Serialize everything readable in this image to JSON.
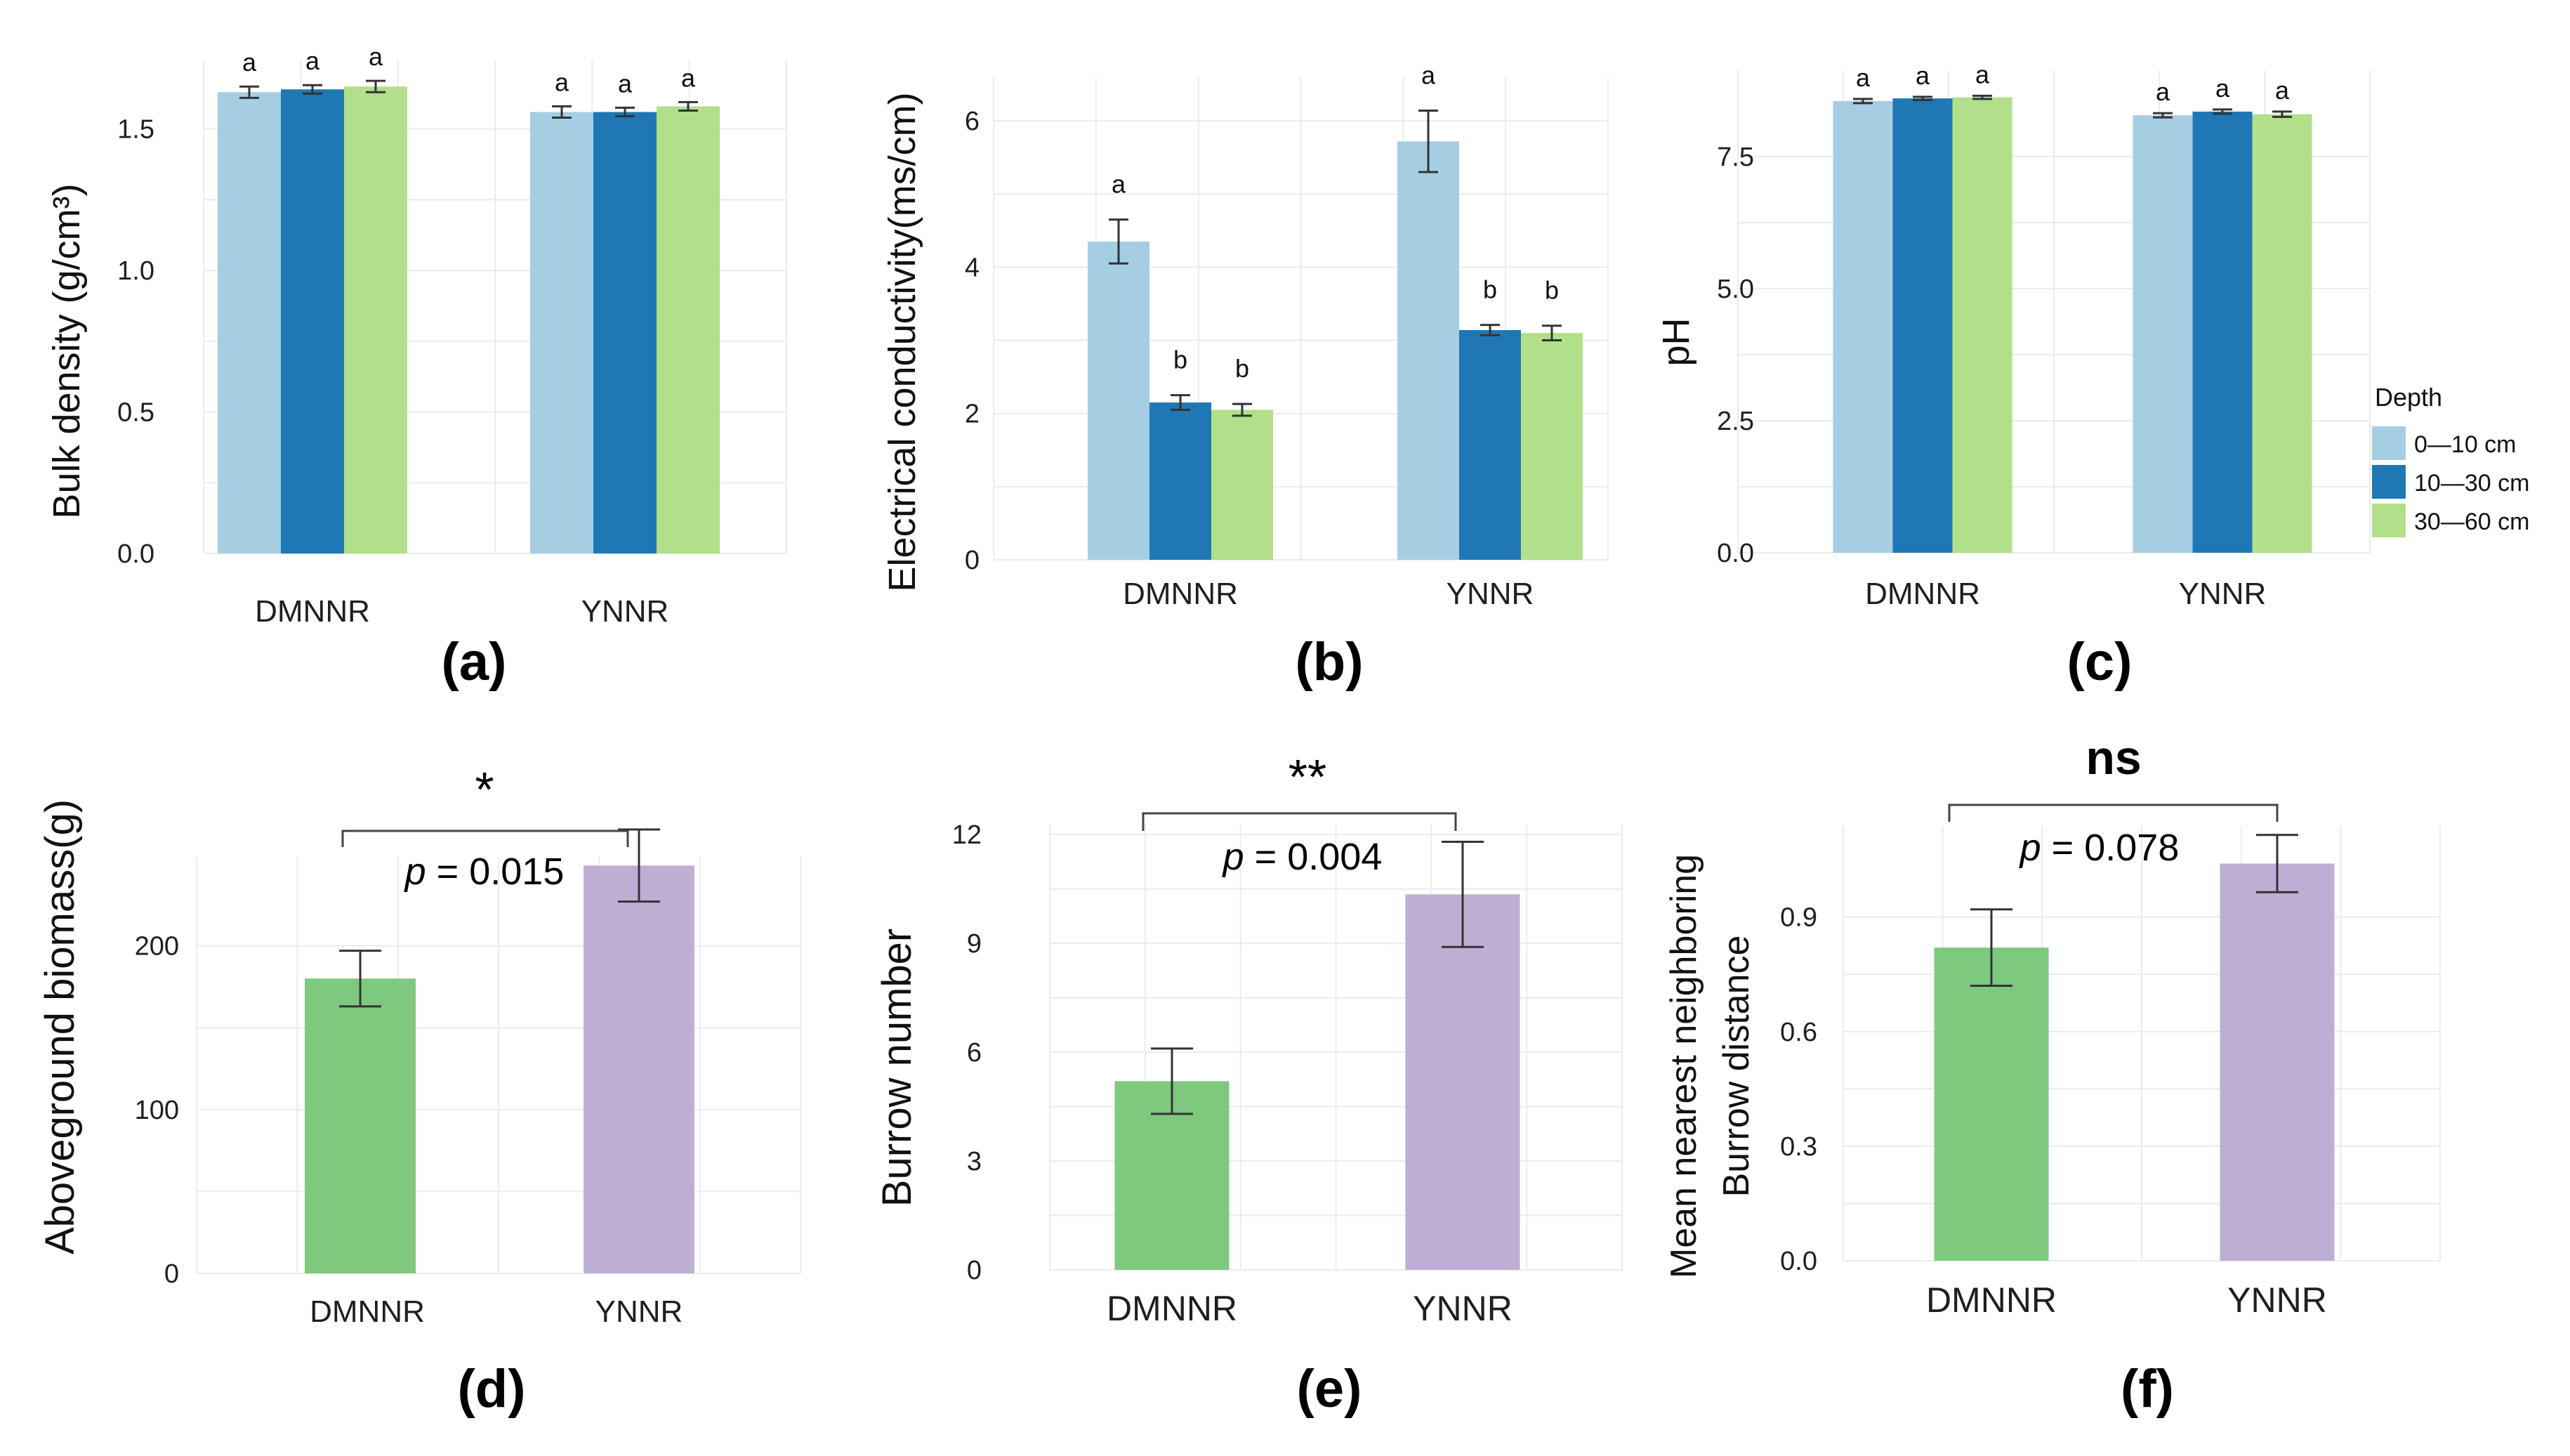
{
  "colors": {
    "depth_0_10": "#a6cee3",
    "depth_10_30": "#1f78b4",
    "depth_30_60": "#b2df8a",
    "dmnnr": "#7fc97f",
    "ynnr": "#beaed4"
  },
  "legend": {
    "title": "Depth",
    "items": [
      "0—10 cm",
      "10—30 cm",
      "30—60 cm"
    ]
  },
  "chart_data": [
    {
      "panel": "(a)",
      "type": "bar",
      "ylabel": "Bulk density (g/cm³)",
      "ylim": [
        0,
        1.72
      ],
      "yticks": [
        "0.0",
        "0.5",
        "1.0",
        "1.5"
      ],
      "categories": [
        "DMNNR",
        "YNNR"
      ],
      "series": [
        {
          "name": "0—10 cm",
          "values": [
            1.63,
            1.56
          ],
          "errors": [
            0.02,
            0.02
          ],
          "letters": [
            "a",
            "a"
          ]
        },
        {
          "name": "10—30 cm",
          "values": [
            1.64,
            1.56
          ],
          "errors": [
            0.015,
            0.015
          ],
          "letters": [
            "a",
            "a"
          ]
        },
        {
          "name": "30—60 cm",
          "values": [
            1.65,
            1.58
          ],
          "errors": [
            0.02,
            0.015
          ],
          "letters": [
            "a",
            "a"
          ]
        }
      ]
    },
    {
      "panel": "(b)",
      "type": "bar",
      "ylabel": "Electrical conductivity(ms/cm)",
      "ylim": [
        0,
        6.5
      ],
      "yticks": [
        "0",
        "2",
        "4",
        "6"
      ],
      "categories": [
        "DMNNR",
        "YNNR"
      ],
      "series": [
        {
          "name": "0—10 cm",
          "values": [
            4.35,
            5.72
          ],
          "errors": [
            0.3,
            0.42
          ],
          "letters": [
            "a",
            "a"
          ]
        },
        {
          "name": "10—30 cm",
          "values": [
            2.15,
            3.14
          ],
          "errors": [
            0.1,
            0.07
          ],
          "letters": [
            "b",
            "b"
          ]
        },
        {
          "name": "30—60 cm",
          "values": [
            2.05,
            3.1
          ],
          "errors": [
            0.08,
            0.1
          ],
          "letters": [
            "b",
            "b"
          ]
        }
      ]
    },
    {
      "panel": "(c)",
      "type": "bar",
      "ylabel": "pH",
      "ylim": [
        0,
        9.0
      ],
      "yticks": [
        "0.0",
        "2.5",
        "5.0",
        "7.5"
      ],
      "categories": [
        "DMNNR",
        "YNNR"
      ],
      "series": [
        {
          "name": "0—10 cm",
          "values": [
            8.55,
            8.28
          ],
          "errors": [
            0.04,
            0.04
          ],
          "letters": [
            "a",
            "a"
          ]
        },
        {
          "name": "10—30 cm",
          "values": [
            8.6,
            8.35
          ],
          "errors": [
            0.03,
            0.04
          ],
          "letters": [
            "a",
            "a"
          ]
        },
        {
          "name": "30—60 cm",
          "values": [
            8.62,
            8.3
          ],
          "errors": [
            0.03,
            0.05
          ],
          "letters": [
            "a",
            "a"
          ]
        }
      ]
    },
    {
      "panel": "(d)",
      "type": "bar",
      "ylabel": "Aboveground biomass(g)",
      "ylim": [
        0,
        250
      ],
      "yticks": [
        "0",
        "100",
        "200"
      ],
      "categories": [
        "DMNNR",
        "YNNR"
      ],
      "values": [
        180,
        249
      ],
      "errors": [
        17,
        22
      ],
      "significance": "*",
      "p_label": "p",
      "p_text": " = 0.015"
    },
    {
      "panel": "(e)",
      "type": "bar",
      "ylabel": "Burrow number",
      "ylim": [
        0,
        12.1
      ],
      "yticks": [
        "0",
        "3",
        "6",
        "9",
        "12"
      ],
      "categories": [
        "DMNNR",
        "YNNR"
      ],
      "values": [
        5.2,
        10.35
      ],
      "errors": [
        0.9,
        1.45
      ],
      "significance": "**",
      "p_label": "p",
      "p_text": " = 0.004"
    },
    {
      "panel": "(f)",
      "type": "bar",
      "ylabel_lines": [
        "Mean nearest neighboring",
        "Burrow distance"
      ],
      "ylim": [
        0,
        1.12
      ],
      "yticks": [
        "0.0",
        "0.3",
        "0.6",
        "0.9"
      ],
      "categories": [
        "DMNNR",
        "YNNR"
      ],
      "values": [
        0.82,
        1.04
      ],
      "errors": [
        0.1,
        0.075
      ],
      "significance": "ns",
      "p_label": "p",
      "p_text": " = 0.078"
    }
  ]
}
